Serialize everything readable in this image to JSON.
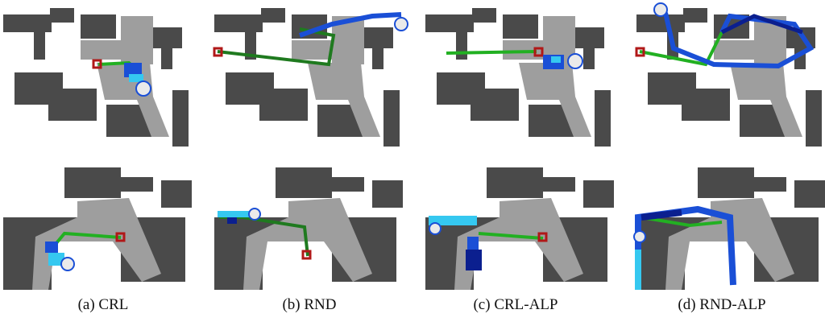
{
  "colors": {
    "dark_wall": "#4a4a4a",
    "light_floor": "#9e9e9e",
    "background": "#ffffff",
    "path_green": "#22b022",
    "start_marker": "#b01818",
    "trajectory_blue": "#1a4fd6",
    "trajectory_navy": "#0b1f8f",
    "trajectory_cyan": "#35c8f0"
  },
  "captions": [
    {
      "label": "(a) CRL"
    },
    {
      "label": "(b) RND"
    },
    {
      "label": "(c) CRL-ALP"
    },
    {
      "label": "(d) RND-ALP"
    }
  ]
}
